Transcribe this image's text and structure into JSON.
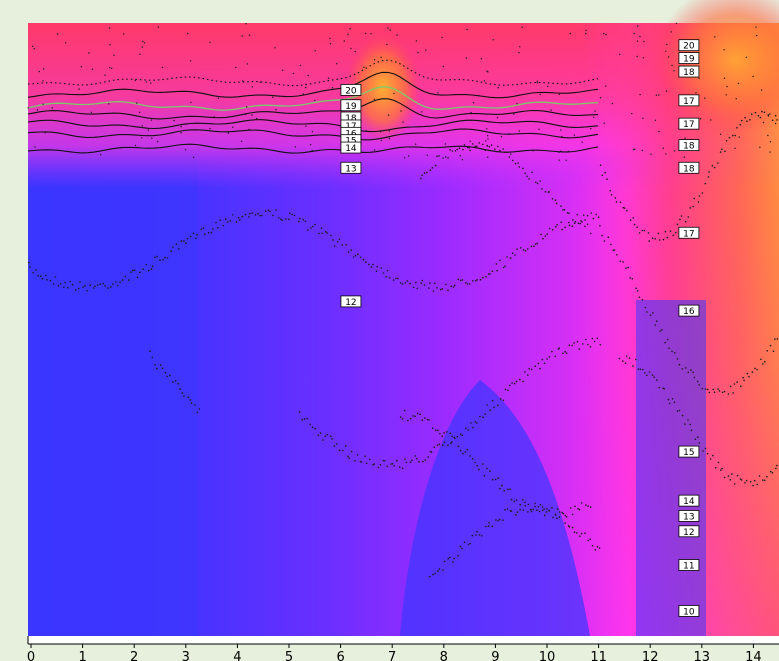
{
  "chart_data": {
    "type": "heatmap",
    "title": "",
    "xlabel": "",
    "ylabel": "",
    "xlim": [
      0,
      14.5
    ],
    "x_ticks": [
      "0",
      "1",
      "2",
      "3",
      "4",
      "5",
      "6",
      "7",
      "8",
      "9",
      "10",
      "11",
      "12",
      "13",
      "14"
    ],
    "grid": false,
    "legend": "none",
    "colormap": [
      "#3030ff",
      "#8a2fff",
      "#ff30ff",
      "#ff4060",
      "#ff8a30"
    ],
    "contour_labels": [
      {
        "x": 6.2,
        "depth_frac": 0.11,
        "text": "20"
      },
      {
        "x": 6.2,
        "depth_frac": 0.135,
        "text": "19"
      },
      {
        "x": 6.2,
        "depth_frac": 0.155,
        "text": "18"
      },
      {
        "x": 6.2,
        "depth_frac": 0.168,
        "text": "17"
      },
      {
        "x": 6.2,
        "depth_frac": 0.18,
        "text": "16"
      },
      {
        "x": 6.2,
        "depth_frac": 0.192,
        "text": "15"
      },
      {
        "x": 6.2,
        "depth_frac": 0.204,
        "text": "14"
      },
      {
        "x": 6.2,
        "depth_frac": 0.237,
        "text": "13"
      },
      {
        "x": 6.2,
        "depth_frac": 0.455,
        "text": "12"
      },
      {
        "x": 12.75,
        "depth_frac": 0.037,
        "text": "20"
      },
      {
        "x": 12.75,
        "depth_frac": 0.058,
        "text": "19"
      },
      {
        "x": 12.75,
        "depth_frac": 0.08,
        "text": "18"
      },
      {
        "x": 12.75,
        "depth_frac": 0.127,
        "text": "17"
      },
      {
        "x": 12.75,
        "depth_frac": 0.165,
        "text": "17"
      },
      {
        "x": 12.75,
        "depth_frac": 0.2,
        "text": "18"
      },
      {
        "x": 12.75,
        "depth_frac": 0.237,
        "text": "18"
      },
      {
        "x": 12.75,
        "depth_frac": 0.343,
        "text": "17"
      },
      {
        "x": 12.75,
        "depth_frac": 0.47,
        "text": "16"
      },
      {
        "x": 12.75,
        "depth_frac": 0.7,
        "text": "15"
      },
      {
        "x": 12.75,
        "depth_frac": 0.78,
        "text": "14"
      },
      {
        "x": 12.75,
        "depth_frac": 0.805,
        "text": "13"
      },
      {
        "x": 12.75,
        "depth_frac": 0.83,
        "text": "12"
      },
      {
        "x": 12.75,
        "depth_frac": 0.885,
        "text": "11"
      },
      {
        "x": 12.75,
        "depth_frac": 0.96,
        "text": "10"
      }
    ]
  }
}
